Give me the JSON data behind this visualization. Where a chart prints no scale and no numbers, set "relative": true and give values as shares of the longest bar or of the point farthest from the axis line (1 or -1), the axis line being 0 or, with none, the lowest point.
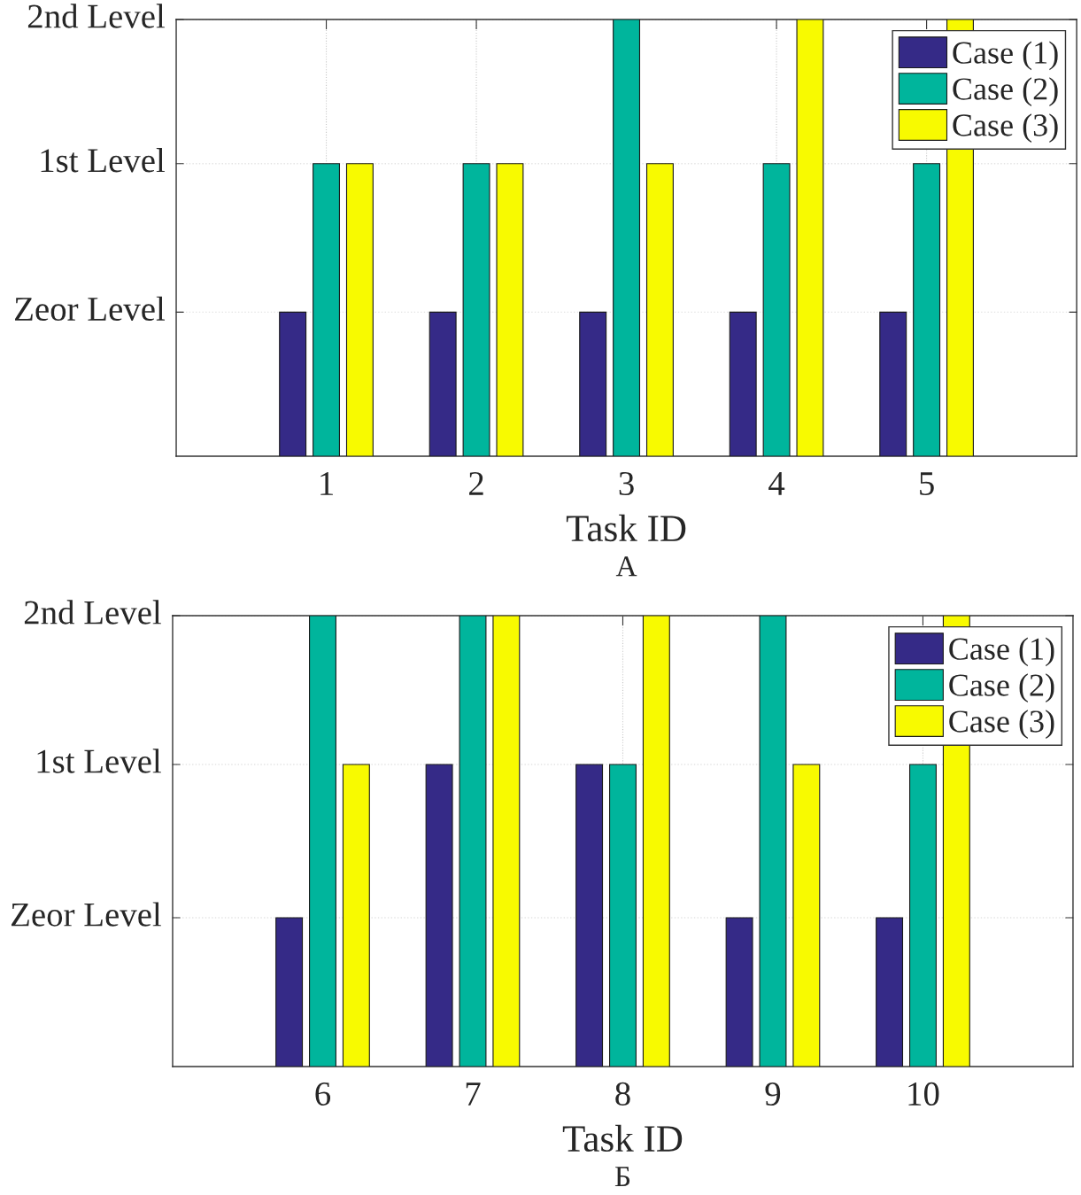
{
  "chart_data": [
    {
      "type": "bar",
      "relative": true,
      "xlabel": "Task ID",
      "annotations": [
        "А"
      ],
      "x": [
        1,
        2,
        3,
        4,
        5
      ],
      "xlim": [
        0,
        6
      ],
      "xticks": [
        1,
        2,
        3,
        4,
        5
      ],
      "grid": "x",
      "legend": "top right",
      "ref_lines": [
        {
          "axis": "y",
          "value": 0.33,
          "label": "Zeor Level",
          "color": "#e3e3e3",
          "line_style": "dotted"
        },
        {
          "axis": "y",
          "value": 0.67,
          "label": "1st Level",
          "color": "#e3e3e3",
          "line_style": "dotted"
        },
        {
          "axis": "y",
          "value": 1,
          "label": "2nd Level",
          "color": "#e3e3e3",
          "line_style": "dotted"
        }
      ],
      "series": [
        {
          "name": "Case (1)",
          "color": "#352a87",
          "values": [
            0.33,
            0.33,
            0.33,
            0.33,
            0.33
          ]
        },
        {
          "name": "Case (2)",
          "color": "#00b59c",
          "values": [
            0.67,
            0.67,
            1,
            0.67,
            0.67
          ]
        },
        {
          "name": "Case (3)",
          "color": "#f8fa00",
          "values": [
            0.67,
            0.67,
            0.67,
            1,
            1
          ]
        }
      ]
    },
    {
      "type": "bar",
      "relative": true,
      "xlabel": "Task ID",
      "annotations": [
        "Б"
      ],
      "x": [
        6,
        7,
        8,
        9,
        10
      ],
      "xlim": [
        5,
        11
      ],
      "xticks": [
        6,
        7,
        8,
        9,
        10
      ],
      "grid": "x",
      "legend": "top right",
      "ref_lines": [
        {
          "axis": "y",
          "value": 0.33,
          "label": "Zeor Level",
          "color": "#e3e3e3",
          "line_style": "dotted"
        },
        {
          "axis": "y",
          "value": 0.67,
          "label": "1st Level",
          "color": "#e3e3e3",
          "line_style": "dotted"
        },
        {
          "axis": "y",
          "value": 1,
          "label": "2nd Level",
          "color": "#e3e3e3",
          "line_style": "dotted"
        }
      ],
      "series": [
        {
          "name": "Case (1)",
          "color": "#352a87",
          "values": [
            0.33,
            0.67,
            0.67,
            0.33,
            0.33
          ]
        },
        {
          "name": "Case (2)",
          "color": "#00b59c",
          "values": [
            1,
            1,
            0.67,
            1,
            0.67
          ]
        },
        {
          "name": "Case (3)",
          "color": "#f8fa00",
          "values": [
            0.67,
            1,
            1,
            0.67,
            1
          ]
        }
      ]
    }
  ]
}
